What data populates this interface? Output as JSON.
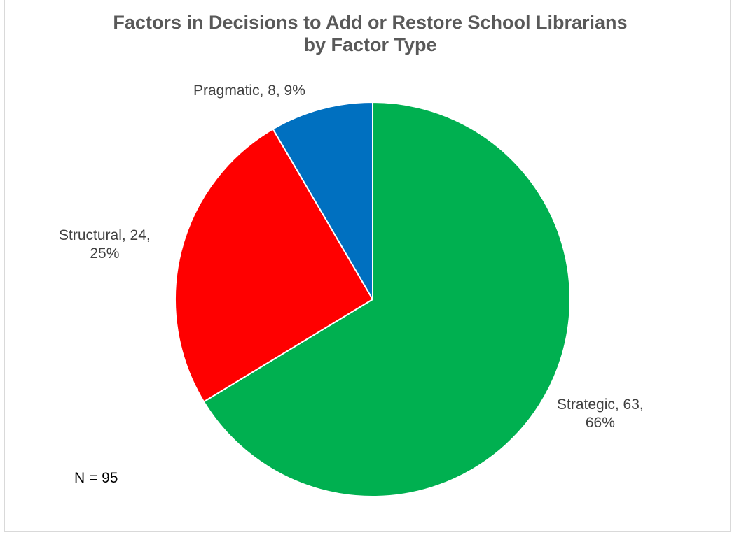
{
  "chart_data": {
    "type": "pie",
    "title_lines": [
      "Factors in Decisions to Add or Restore School Librarians",
      "by Factor Type"
    ],
    "slices": [
      {
        "name": "Strategic",
        "value": 63,
        "percent": "66%",
        "color": "#00b050",
        "label_lines": [
          "Strategic, 63,",
          "66%"
        ]
      },
      {
        "name": "Structural",
        "value": 24,
        "percent": "25%",
        "color": "#ff0000",
        "label_lines": [
          "Structural, 24,",
          "25%"
        ]
      },
      {
        "name": "Pragmatic",
        "value": 8,
        "percent": "9%",
        "color": "#0070c0",
        "label_lines": [
          "Pragmatic, 8, 9%"
        ]
      }
    ],
    "start_angle_deg": 0,
    "direction": "clockwise",
    "legend": "none"
  },
  "annotation": {
    "n_text": "N = 95"
  }
}
